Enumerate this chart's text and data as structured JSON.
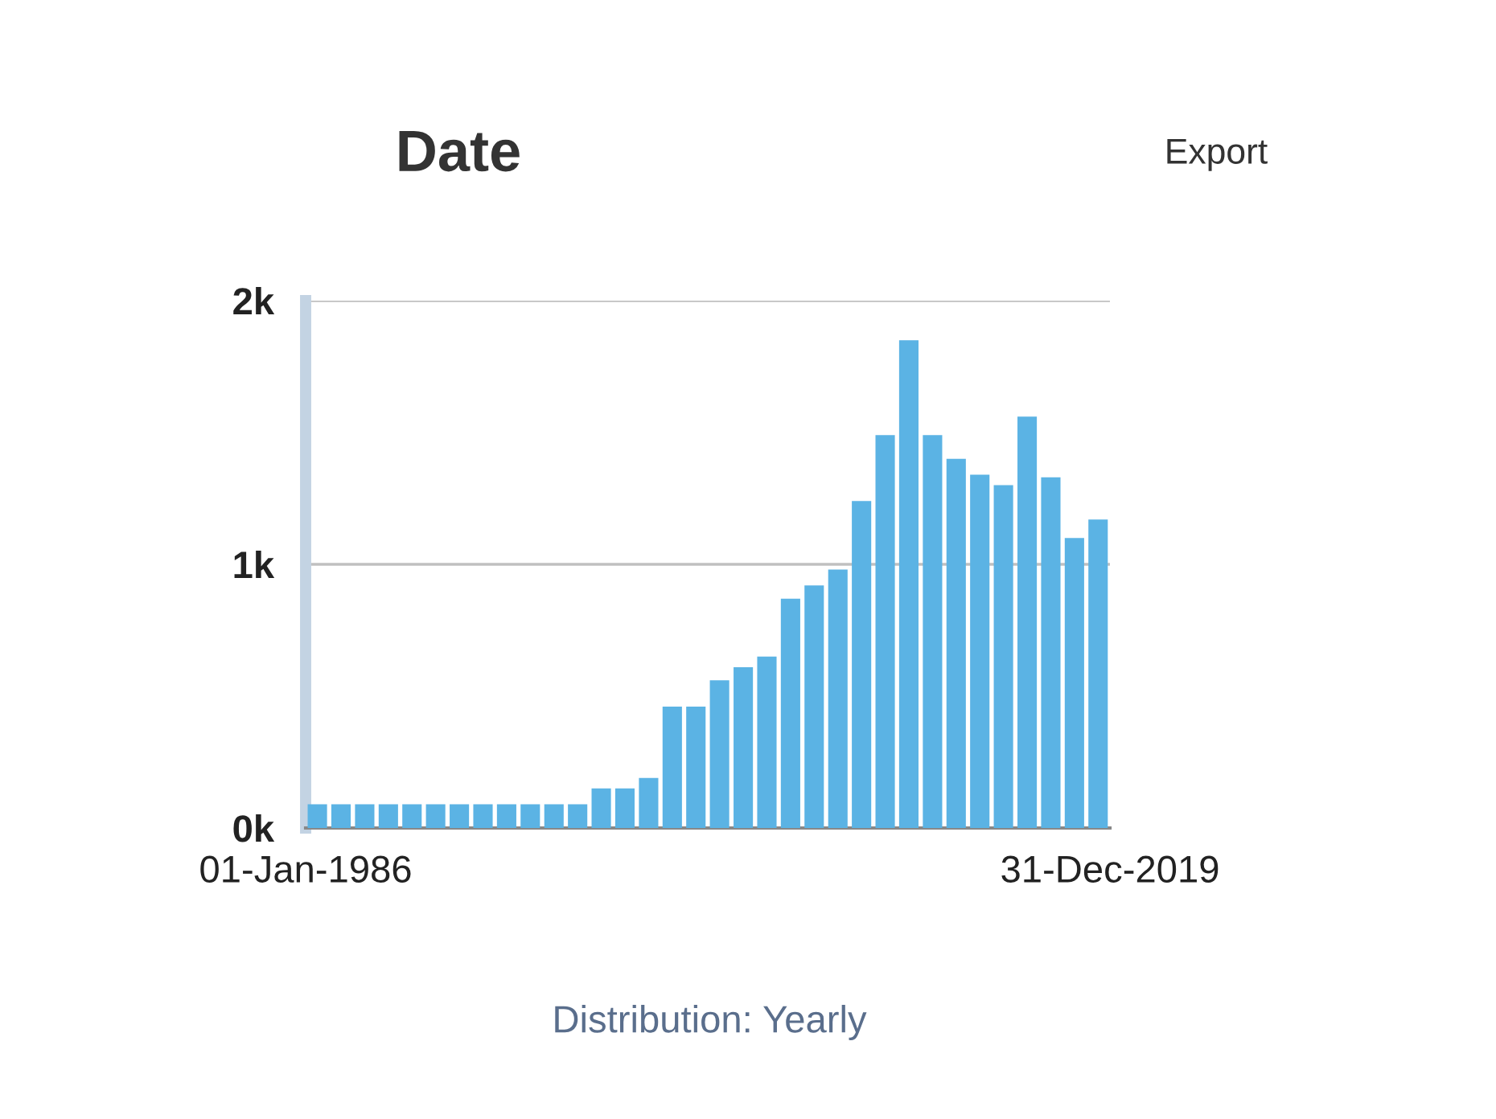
{
  "chart_data": {
    "type": "bar",
    "title": "Date",
    "x": [
      "1986-07",
      "1987-07",
      "1988-07",
      "1989-07",
      "1990-07",
      "1991-07",
      "1992-07",
      "1993-07",
      "1994-07",
      "1995-07",
      "1996-07",
      "1997-07",
      "1998-07",
      "1999-07",
      "2000-07",
      "2001-07",
      "2002-07",
      "2003-07",
      "2004-07",
      "2005-07",
      "2006-07",
      "2007-07",
      "2008-07",
      "2009-07",
      "2010-07",
      "2011-07",
      "2012-07",
      "2013-07",
      "2014-07",
      "2015-07",
      "2016-07",
      "2017-07",
      "2018-07",
      "2019-07"
    ],
    "values": [
      90,
      90,
      90,
      90,
      90,
      90,
      90,
      90,
      90,
      90,
      90,
      90,
      150,
      150,
      190,
      460,
      460,
      560,
      610,
      650,
      870,
      920,
      980,
      1240,
      1490,
      1850,
      1490,
      1400,
      1340,
      1300,
      1560,
      1330,
      1100,
      1170
    ],
    "color": "#5bb3e4",
    "xlim": [
      "1986-01-01",
      "2019-12-31"
    ],
    "xticks": [
      {
        "value": "1986-01-01",
        "label": "01-Jan-1986"
      },
      {
        "value": "2019-12-31",
        "label": "31-Dec-2019"
      }
    ],
    "ylim": [
      0,
      2000
    ],
    "yticks": [
      {
        "value": 0,
        "label": "0k"
      },
      {
        "value": 1000,
        "label": "1k"
      },
      {
        "value": 2000,
        "label": "2k"
      }
    ],
    "grid": "y",
    "annotations": [
      "Export",
      "Distribution: Yearly"
    ]
  }
}
